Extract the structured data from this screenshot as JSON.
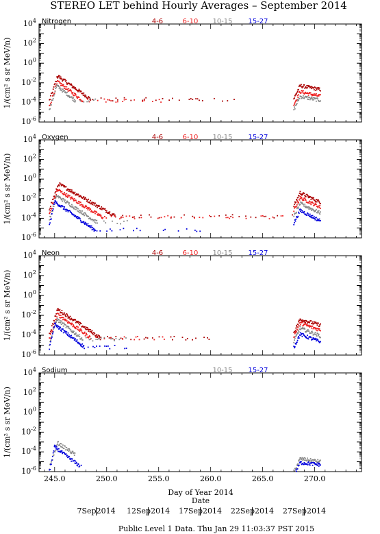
{
  "chart_data": {
    "type": "scatter",
    "title": "STEREO LET behind Hourly Averages – September 2014",
    "xlabel": "Day of Year 2014",
    "date_axis_label": "Date",
    "ylabel": "1/(cm² s sr MeV/n)",
    "xlim": [
      243.5,
      274.5
    ],
    "ylim_log10": [
      -6,
      4
    ],
    "log_y": true,
    "x_ticks": [
      "245.0",
      "250.0",
      "255.0",
      "260.0",
      "265.0",
      "270.0"
    ],
    "date_ticks": [
      {
        "x": 249.0,
        "label": "7Sep2014"
      },
      {
        "x": 254.0,
        "label": "12Sep2014"
      },
      {
        "x": 259.0,
        "label": "17Sep2014"
      },
      {
        "x": 264.0,
        "label": "22Sep2014"
      },
      {
        "x": 269.0,
        "label": "27Sep2014"
      }
    ],
    "footer": "Public Level 1 Data. Thu Jan 29 11:03:37 PST 2015",
    "series_colors": {
      "4-6": "#aa0000",
      "6-10": "#ee2222",
      "10-15": "#888888",
      "15-27": "#0000dd"
    },
    "panels": [
      {
        "name": "Nitrogen",
        "legend": [
          "4-6",
          "6-10",
          "10-15",
          "15-27"
        ],
        "series": [
          {
            "name": "4-6",
            "peak_x": 245.3,
            "peak": -1.3,
            "decay": 0.75,
            "bg_until": 263,
            "bg": -3.7,
            "event_peak": -2.3,
            "event_end": -2.7
          },
          {
            "name": "6-10",
            "peak_x": 245.3,
            "peak": -1.9,
            "decay": 0.8,
            "bg_until": 257,
            "bg": -3.8,
            "event_peak": -2.9,
            "event_end": -3.4
          },
          {
            "name": "10-15",
            "peak_x": 245.2,
            "peak": -2.3,
            "decay": 0.85,
            "bg_until": 249,
            "bg": -3.8,
            "event_peak": -3.4,
            "event_end": -3.8
          }
        ]
      },
      {
        "name": "Oxygen",
        "legend": [
          "4-6",
          "6-10",
          "10-15",
          "15-27"
        ],
        "series": [
          {
            "name": "4-6",
            "peak_x": 245.4,
            "peak": -0.5,
            "decay": 0.6,
            "bg_until": 268,
            "bg": -3.8,
            "event_peak": -1.4,
            "event_end": -2.4
          },
          {
            "name": "6-10",
            "peak_x": 245.3,
            "peak": -1.1,
            "decay": 0.65,
            "bg_until": 268,
            "bg": -3.9,
            "event_peak": -1.9,
            "event_end": -2.9
          },
          {
            "name": "10-15",
            "peak_x": 245.2,
            "peak": -1.7,
            "decay": 0.7,
            "bg_until": 252,
            "bg": -4.4,
            "event_peak": -2.5,
            "event_end": -3.5
          },
          {
            "name": "15-27",
            "peak_x": 245.0,
            "peak": -2.3,
            "decay": 0.75,
            "bg_until": 259,
            "bg": -5.2,
            "event_peak": -3.2,
            "event_end": -4.3
          }
        ]
      },
      {
        "name": "Neon",
        "legend": [
          "4-6",
          "6-10",
          "10-15",
          "15-27"
        ],
        "series": [
          {
            "name": "4-6",
            "peak_x": 245.3,
            "peak": -1.4,
            "decay": 0.7,
            "bg_until": 260,
            "bg": -4.3,
            "event_peak": -2.4,
            "event_end": -3.0
          },
          {
            "name": "6-10",
            "peak_x": 245.3,
            "peak": -1.9,
            "decay": 0.75,
            "bg_until": 256,
            "bg": -4.3,
            "event_peak": -2.8,
            "event_end": -3.5
          },
          {
            "name": "10-15",
            "peak_x": 245.2,
            "peak": -2.4,
            "decay": 0.8,
            "bg_until": 252,
            "bg": -4.4,
            "event_peak": -3.3,
            "event_end": -4.1
          },
          {
            "name": "15-27",
            "peak_x": 245.0,
            "peak": -2.9,
            "decay": 0.8,
            "bg_until": 252,
            "bg": -5.2,
            "event_peak": -3.9,
            "event_end": -4.7
          }
        ]
      },
      {
        "name": "Sodium",
        "legend": [
          "10-15",
          "15-27"
        ],
        "series": [
          {
            "name": "10-15",
            "peak_x": 245.3,
            "peak": -3.1,
            "decay": 0.7,
            "bg_until": 247,
            "bg": -4.3,
            "event_peak": -4.7,
            "event_end": -5.0
          },
          {
            "name": "15-27",
            "peak_x": 245.0,
            "peak": -3.5,
            "decay": 0.8,
            "bg_until": 248,
            "bg": -5.4,
            "event_peak": -5.1,
            "event_end": -5.3
          }
        ]
      }
    ]
  }
}
